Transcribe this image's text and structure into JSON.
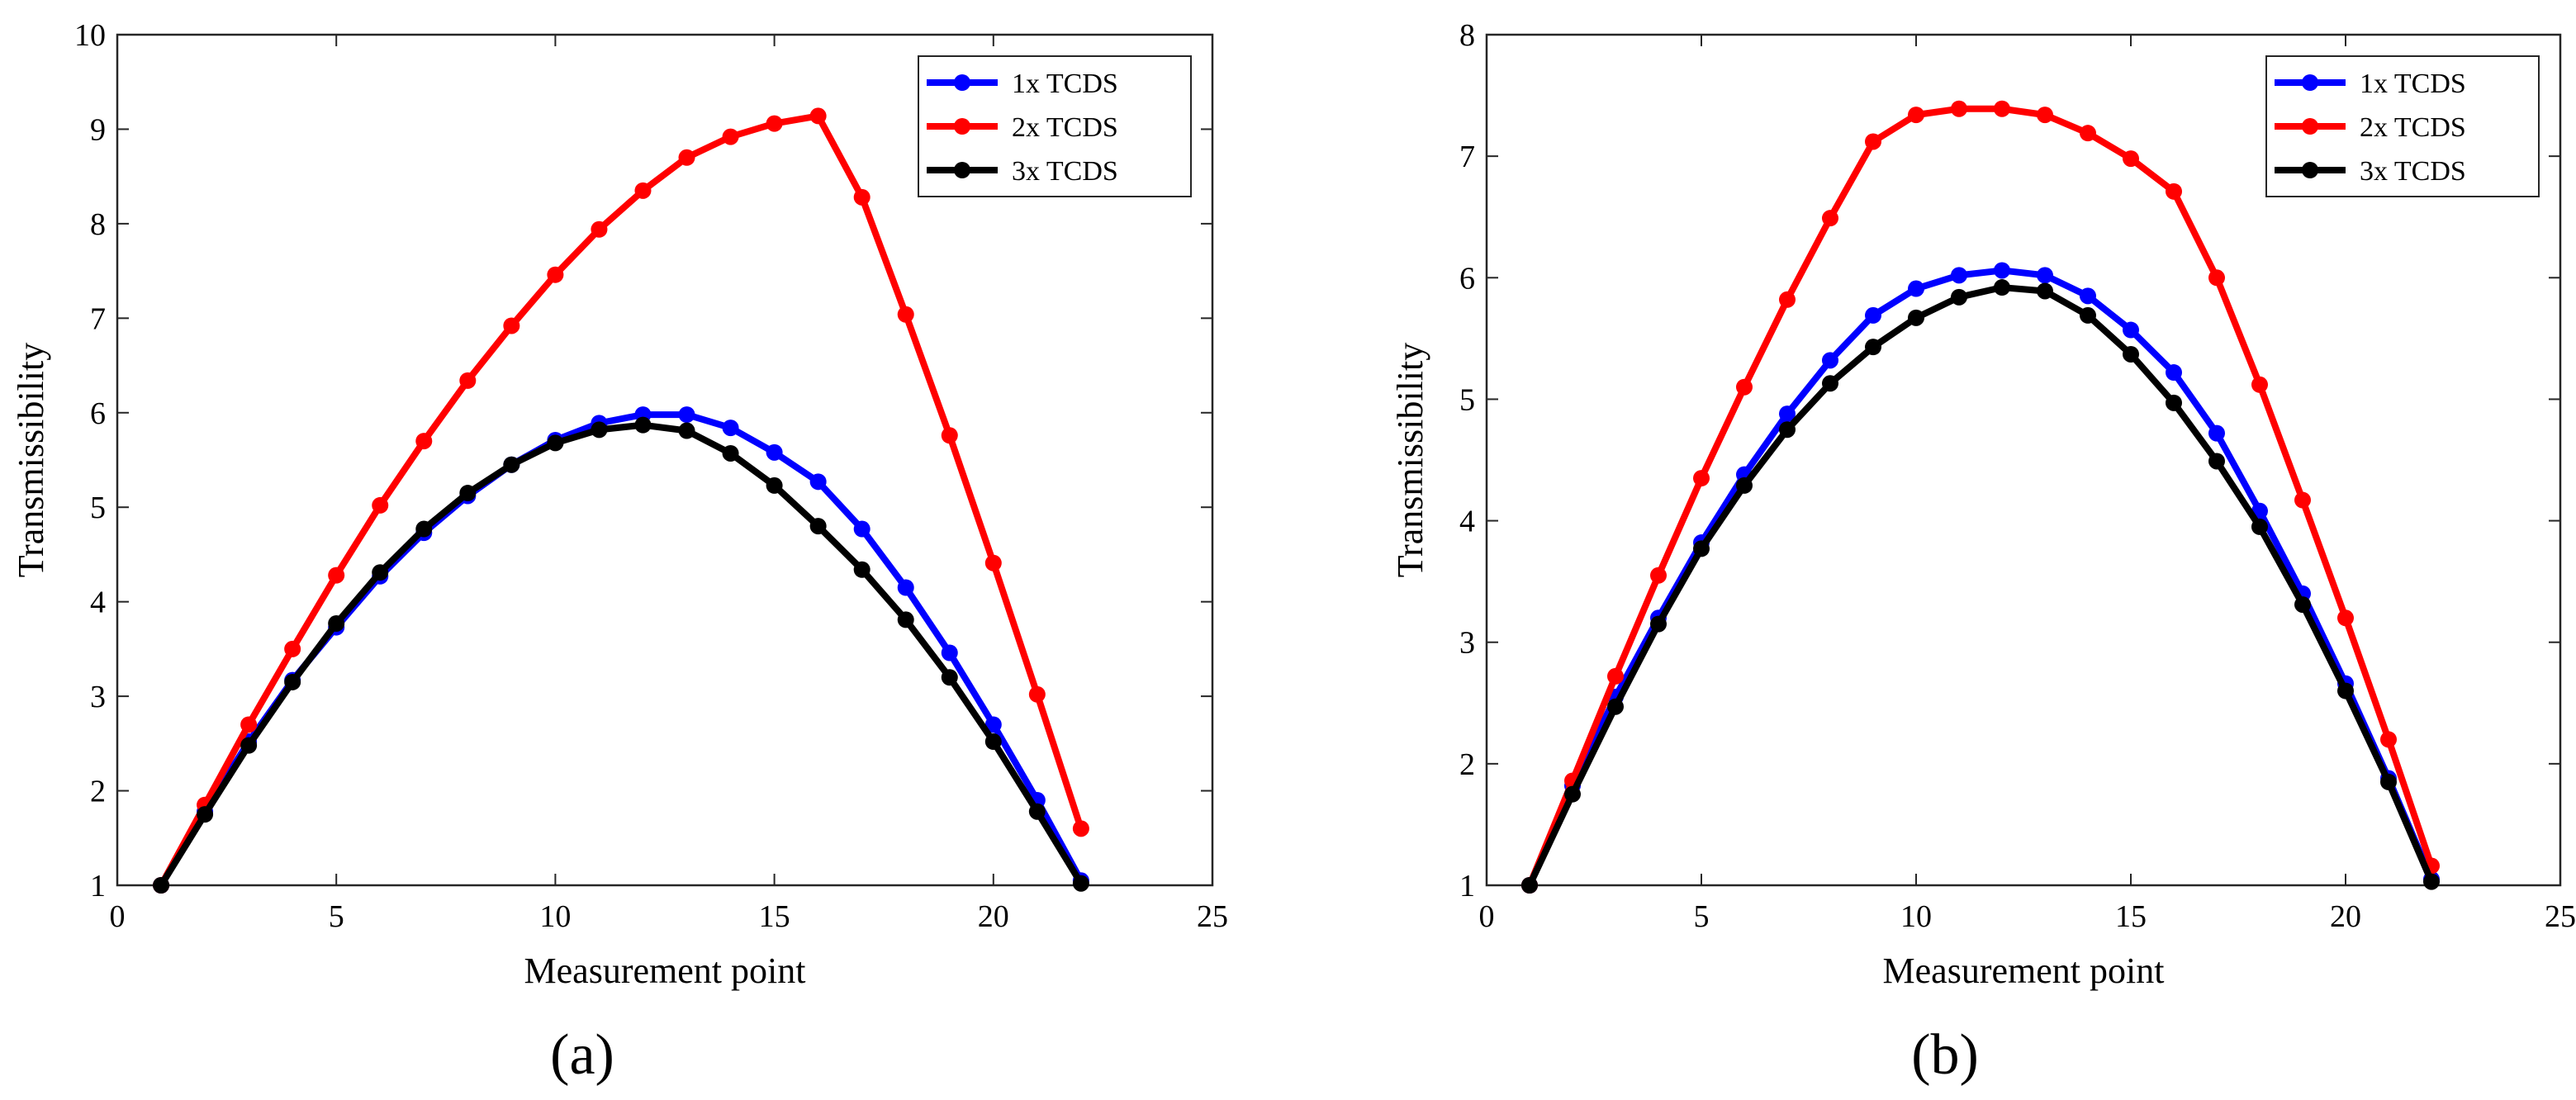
{
  "chart_data": [
    {
      "type": "line",
      "panel_label": "(a)",
      "title": "",
      "xlabel": "Measurement point",
      "ylabel": "Transmissibility",
      "xlim": [
        0,
        25
      ],
      "ylim": [
        1,
        10
      ],
      "xticks": [
        0,
        5,
        10,
        15,
        20,
        25
      ],
      "yticks": [
        1,
        2,
        3,
        4,
        5,
        6,
        7,
        8,
        9,
        10
      ],
      "grid": false,
      "legend_position": "top-right",
      "x": [
        1,
        2,
        3,
        4,
        5,
        6,
        7,
        8,
        9,
        10,
        11,
        12,
        13,
        14,
        15,
        16,
        17,
        18,
        19,
        20,
        21,
        22
      ],
      "series": [
        {
          "name": "1x TCDS",
          "color": "#0000ff",
          "values": [
            1.0,
            1.78,
            2.52,
            3.17,
            3.73,
            4.27,
            4.73,
            5.12,
            5.45,
            5.71,
            5.89,
            5.98,
            5.98,
            5.84,
            5.58,
            5.27,
            4.77,
            4.15,
            3.46,
            2.7,
            1.9,
            1.05
          ]
        },
        {
          "name": "2x TCDS",
          "color": "#ff0000",
          "values": [
            1.0,
            1.85,
            2.7,
            3.5,
            4.28,
            5.02,
            5.7,
            6.34,
            6.92,
            7.46,
            7.94,
            8.35,
            8.7,
            8.92,
            9.06,
            9.14,
            8.28,
            7.04,
            5.76,
            4.41,
            3.02,
            1.6
          ]
        },
        {
          "name": "3x TCDS",
          "color": "#000000",
          "values": [
            1.0,
            1.75,
            2.48,
            3.15,
            3.77,
            4.31,
            4.77,
            5.15,
            5.45,
            5.68,
            5.82,
            5.87,
            5.81,
            5.57,
            5.23,
            4.8,
            4.34,
            3.81,
            3.2,
            2.52,
            1.78,
            1.02
          ]
        }
      ]
    },
    {
      "type": "line",
      "panel_label": "(b)",
      "title": "",
      "xlabel": "Measurement point",
      "ylabel": "Transmissibility",
      "xlim": [
        0,
        25
      ],
      "ylim": [
        1,
        8
      ],
      "xticks": [
        0,
        5,
        10,
        15,
        20,
        25
      ],
      "yticks": [
        1,
        2,
        3,
        4,
        5,
        6,
        7,
        8
      ],
      "grid": false,
      "legend_position": "top-right",
      "x": [
        1,
        2,
        3,
        4,
        5,
        6,
        7,
        8,
        9,
        10,
        11,
        12,
        13,
        14,
        15,
        16,
        17,
        18,
        19,
        20,
        21,
        22
      ],
      "series": [
        {
          "name": "1x TCDS",
          "color": "#0000ff",
          "values": [
            1.0,
            1.82,
            2.55,
            3.2,
            3.82,
            4.38,
            4.88,
            5.32,
            5.69,
            5.91,
            6.02,
            6.06,
            6.02,
            5.85,
            5.57,
            5.22,
            4.72,
            4.08,
            3.4,
            2.66,
            1.88,
            1.05
          ]
        },
        {
          "name": "2x TCDS",
          "color": "#ff0000",
          "values": [
            1.0,
            1.86,
            2.72,
            3.55,
            4.35,
            5.1,
            5.82,
            6.49,
            7.12,
            7.34,
            7.39,
            7.39,
            7.34,
            7.19,
            6.98,
            6.71,
            6.0,
            5.12,
            4.17,
            3.2,
            2.2,
            1.16
          ]
        },
        {
          "name": "3x TCDS",
          "color": "#000000",
          "values": [
            1.0,
            1.75,
            2.47,
            3.15,
            3.77,
            4.29,
            4.75,
            5.13,
            5.43,
            5.67,
            5.84,
            5.92,
            5.89,
            5.69,
            5.37,
            4.97,
            4.49,
            3.95,
            3.31,
            2.6,
            1.85,
            1.03
          ]
        }
      ]
    }
  ]
}
